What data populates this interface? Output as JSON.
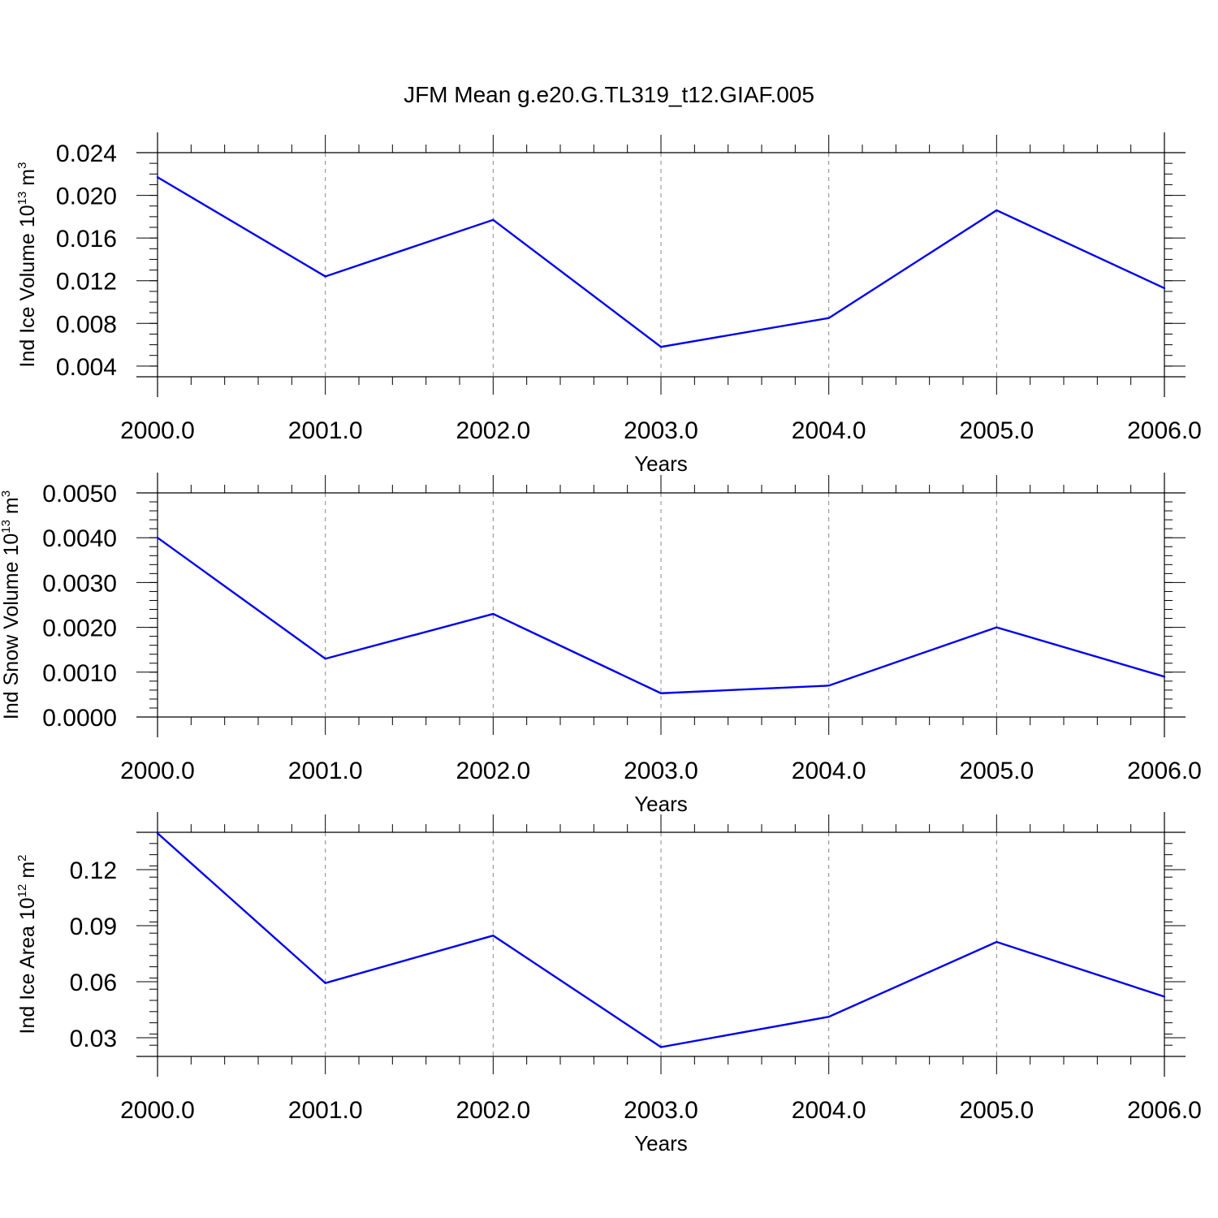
{
  "figure_title": "JFM Mean g.e20.G.TL319_t12.GIAF.005",
  "colors": {
    "line": "#0000ee",
    "axis": "#000000",
    "grid": "#888888"
  },
  "chart_data": [
    {
      "type": "line",
      "ylabel_main": "Ind Ice Volume 10",
      "ylabel_exp": "13",
      "ylabel_unit": " m",
      "ylabel_unit_exp": "3",
      "xlabel": "Years",
      "x": [
        2000,
        2001,
        2002,
        2003,
        2004,
        2005,
        2006
      ],
      "xtick_labels": [
        "2000.0",
        "2001.0",
        "2002.0",
        "2003.0",
        "2004.0",
        "2005.0",
        "2006.0"
      ],
      "ylim": [
        0.003,
        0.024
      ],
      "yticks": [
        0.004,
        0.008,
        0.012,
        0.016,
        0.02,
        0.024
      ],
      "ytick_labels": [
        "0.004",
        "0.008",
        "0.012",
        "0.016",
        "0.020",
        "0.024"
      ],
      "yminor_step": 0.001,
      "series": [
        {
          "values": [
            0.0217,
            0.0124,
            0.0177,
            0.0058,
            0.0085,
            0.0186,
            0.0113
          ]
        }
      ]
    },
    {
      "type": "line",
      "ylabel_main": "Ind Snow Volume 10",
      "ylabel_exp": "13",
      "ylabel_unit": " m",
      "ylabel_unit_exp": "3",
      "xlabel": "Years",
      "x": [
        2000,
        2001,
        2002,
        2003,
        2004,
        2005,
        2006
      ],
      "xtick_labels": [
        "2000.0",
        "2001.0",
        "2002.0",
        "2003.0",
        "2004.0",
        "2005.0",
        "2006.0"
      ],
      "ylim": [
        0.0,
        0.005
      ],
      "yticks": [
        0.0,
        0.001,
        0.002,
        0.003,
        0.004,
        0.005
      ],
      "ytick_labels": [
        "0.0000",
        "0.0010",
        "0.0020",
        "0.0030",
        "0.0040",
        "0.0050"
      ],
      "yminor_step": 0.0002,
      "series": [
        {
          "values": [
            0.004,
            0.0013,
            0.0023,
            0.00053,
            0.0007,
            0.002,
            0.0009
          ]
        }
      ]
    },
    {
      "type": "line",
      "ylabel_main": "Ind Ice Area 10",
      "ylabel_exp": "12",
      "ylabel_unit": " m",
      "ylabel_unit_exp": "2",
      "xlabel": "Years",
      "x": [
        2000,
        2001,
        2002,
        2003,
        2004,
        2005,
        2006
      ],
      "xtick_labels": [
        "2000.0",
        "2001.0",
        "2002.0",
        "2003.0",
        "2004.0",
        "2005.0",
        "2006.0"
      ],
      "ylim": [
        0.02,
        0.14
      ],
      "yticks": [
        0.03,
        0.06,
        0.09,
        0.12
      ],
      "ytick_labels": [
        "0.03",
        "0.06",
        "0.09",
        "0.12"
      ],
      "yminor_step": 0.006,
      "series": [
        {
          "values": [
            0.1395,
            0.0593,
            0.0847,
            0.025,
            0.0412,
            0.0813,
            0.052
          ]
        }
      ]
    }
  ]
}
